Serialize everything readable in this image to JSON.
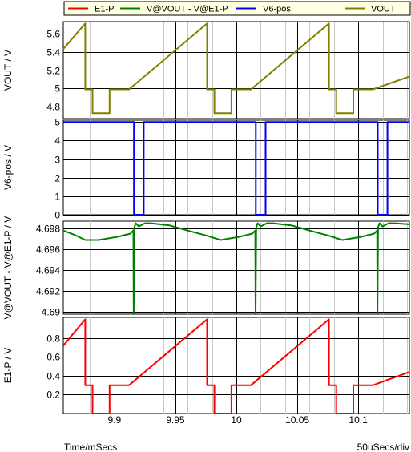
{
  "chart_data": {
    "type": "line",
    "x_unit_label": "Time/mSecs",
    "x_div_label": "50uSecs/div",
    "xlim": [
      9.858,
      10.142
    ],
    "x_ticks": [
      9.9,
      9.95,
      10,
      10.05,
      10.1
    ],
    "x_tick_labels": [
      "9.9",
      "9.95",
      "10",
      "10.05",
      "10.1"
    ],
    "legend": [
      {
        "name": "E1-P",
        "color": "#ff0000"
      },
      {
        "name": "V@VOUT - V@E1-P",
        "color": "#008000"
      },
      {
        "name": "V6-pos",
        "color": "#0000ff"
      },
      {
        "name": "VOUT",
        "color": "#808000"
      }
    ],
    "panels": [
      {
        "series": "VOUT",
        "color": "#808000",
        "ylabel": "VOUT / V",
        "ylim": [
          4.67,
          5.73
        ],
        "y_ticks": [
          4.8,
          5,
          5.2,
          5.4,
          5.6
        ],
        "y_tick_labels": [
          "4.8",
          "5",
          "5.2",
          "5.4",
          "5.6"
        ],
        "x": [
          9.858,
          9.876,
          9.876,
          9.882,
          9.882,
          9.896,
          9.896,
          9.901,
          9.901,
          9.912,
          9.912,
          9.976,
          9.976,
          9.982,
          9.982,
          9.996,
          9.996,
          10.001,
          10.001,
          10.012,
          10.012,
          10.076,
          10.076,
          10.082,
          10.082,
          10.096,
          10.096,
          10.101,
          10.101,
          10.112,
          10.112,
          10.142
        ],
        "y": [
          5.43,
          5.71,
          4.99,
          4.99,
          4.73,
          4.73,
          4.99,
          4.99,
          4.99,
          4.99,
          4.99,
          5.71,
          4.99,
          4.99,
          4.73,
          4.73,
          4.99,
          4.99,
          4.99,
          4.99,
          4.99,
          5.71,
          4.99,
          4.99,
          4.73,
          4.73,
          4.99,
          4.99,
          4.99,
          4.99,
          4.99,
          5.13
        ]
      },
      {
        "series": "V6-pos",
        "color": "#0000ff",
        "ylabel": "V6-pos / V",
        "ylim": [
          0,
          5.1
        ],
        "y_ticks": [
          0,
          1,
          2,
          3,
          4,
          5
        ],
        "y_tick_labels": [
          "0",
          "1",
          "2",
          "3",
          "4",
          "5"
        ],
        "x": [
          9.858,
          9.916,
          9.916,
          9.924,
          9.924,
          10.016,
          10.016,
          10.024,
          10.024,
          10.116,
          10.116,
          10.124,
          10.124,
          10.142
        ],
        "y": [
          5,
          5,
          0,
          0,
          5,
          5,
          0,
          0,
          5,
          5,
          0,
          0,
          5,
          5
        ]
      },
      {
        "series": "V@VOUT - V@E1-P",
        "color": "#008000",
        "ylabel": "V@VOUT - V@E1-P / V",
        "ylim": [
          4.6898,
          4.6987
        ],
        "y_ticks": [
          4.69,
          4.692,
          4.694,
          4.696,
          4.698
        ],
        "y_tick_labels": [
          "4.69",
          "4.692",
          "4.694",
          "4.696",
          "4.698"
        ],
        "x": [
          9.858,
          9.867,
          9.876,
          9.887,
          9.902,
          9.913,
          9.9155,
          9.9158,
          9.9163,
          9.9175,
          9.92,
          9.925,
          9.93,
          9.945,
          9.96,
          9.976,
          9.987,
          10.002,
          10.013,
          10.0155,
          10.0158,
          10.0163,
          10.0175,
          10.02,
          10.025,
          10.03,
          10.045,
          10.06,
          10.076,
          10.087,
          10.102,
          10.113,
          10.1155,
          10.1158,
          10.1163,
          10.1175,
          10.12,
          10.125,
          10.13,
          10.142
        ],
        "y": [
          4.6978,
          4.6974,
          4.6969,
          4.6969,
          4.6972,
          4.6975,
          4.6978,
          4.6899,
          4.6981,
          4.6985,
          4.6982,
          4.6985,
          4.6985,
          4.6983,
          4.6978,
          4.6973,
          4.6969,
          4.6972,
          4.6975,
          4.6978,
          4.6899,
          4.6981,
          4.6985,
          4.6982,
          4.6985,
          4.6985,
          4.6983,
          4.6978,
          4.6973,
          4.6969,
          4.6972,
          4.6975,
          4.6978,
          4.6899,
          4.6981,
          4.6985,
          4.6982,
          4.6985,
          4.6985,
          4.6984
        ]
      },
      {
        "series": "E1-P",
        "color": "#ff0000",
        "ylabel": "E1-P / V",
        "ylim": [
          0,
          1.02
        ],
        "y_ticks": [
          0.2,
          0.4,
          0.6,
          0.8
        ],
        "y_tick_labels": [
          "0.2",
          "0.4",
          "0.6",
          "0.8"
        ],
        "x": [
          9.858,
          9.876,
          9.876,
          9.882,
          9.882,
          9.896,
          9.896,
          9.901,
          9.901,
          9.912,
          9.912,
          9.976,
          9.976,
          9.982,
          9.982,
          9.996,
          9.996,
          10.001,
          10.001,
          10.012,
          10.012,
          10.076,
          10.076,
          10.082,
          10.082,
          10.096,
          10.096,
          10.101,
          10.101,
          10.112,
          10.112,
          10.142
        ],
        "y": [
          0.72,
          1.0,
          0.3,
          0.3,
          0.0,
          0.0,
          0.3,
          0.3,
          0.3,
          0.3,
          0.3,
          1.0,
          0.3,
          0.3,
          0.0,
          0.0,
          0.3,
          0.3,
          0.3,
          0.3,
          0.3,
          1.0,
          0.3,
          0.3,
          0.0,
          0.0,
          0.3,
          0.3,
          0.3,
          0.3,
          0.3,
          0.44
        ]
      }
    ]
  }
}
